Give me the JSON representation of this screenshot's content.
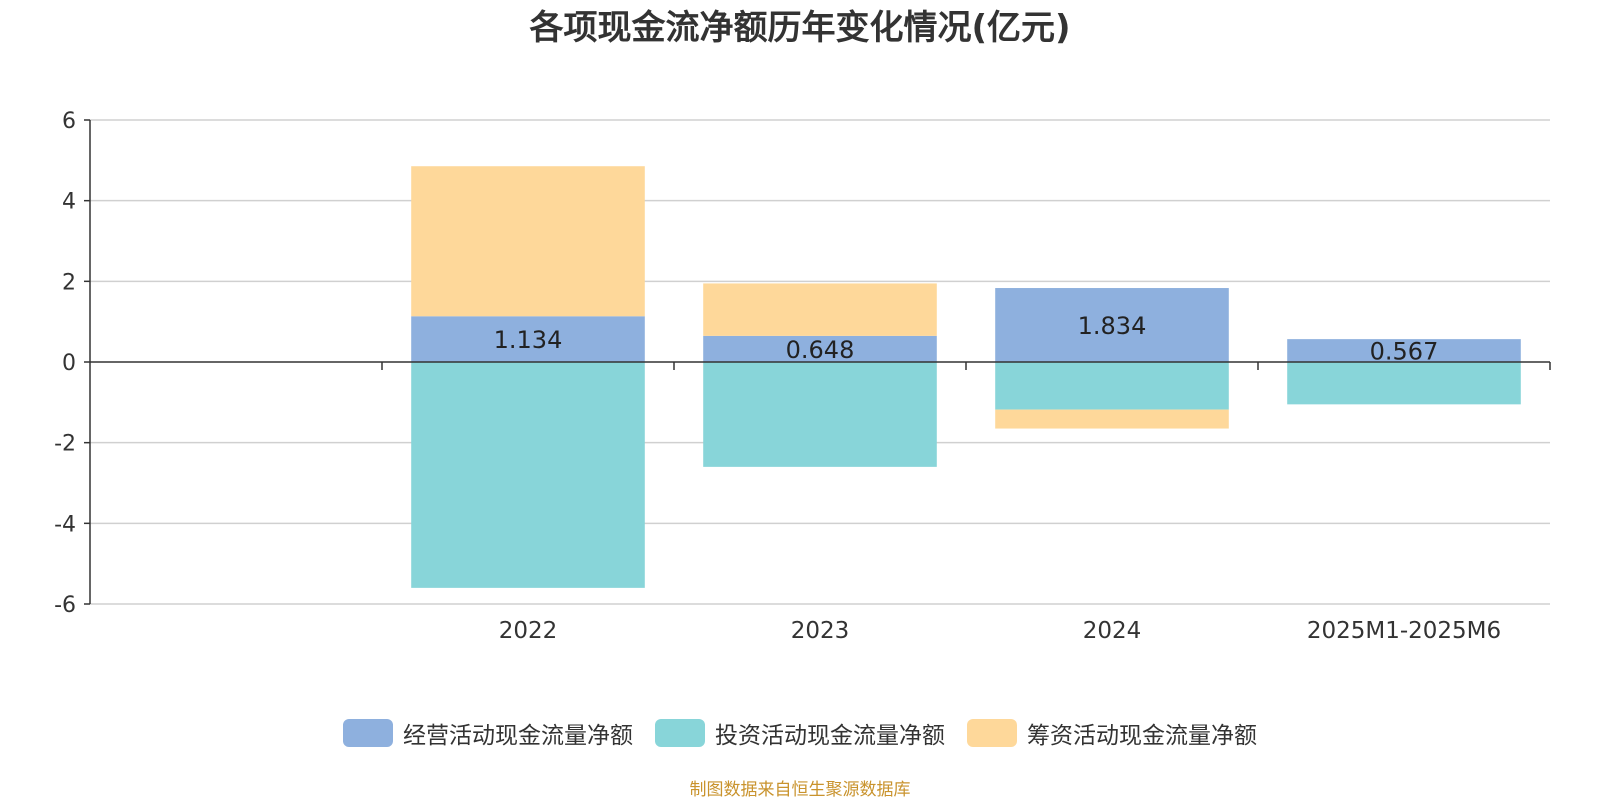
{
  "chart_data": {
    "type": "bar",
    "stacked": true,
    "title": "各项现金流净额历年变化情况(亿元)",
    "categories": [
      "",
      "2022",
      "2023",
      "2024",
      "2025M1-2025M6"
    ],
    "ylim": [
      -6,
      6
    ],
    "yticks": [
      6,
      4,
      2,
      0,
      -2,
      -4,
      -6
    ],
    "grid": true,
    "legend_position": "bottom",
    "series": [
      {
        "name": "经营活动现金流量净额",
        "color": "#8eb0de",
        "values": [
          null,
          1.134,
          0.648,
          1.834,
          0.567
        ],
        "labels": [
          "",
          "1.134",
          "0.648",
          "1.834",
          "0.567"
        ]
      },
      {
        "name": "投资活动现金流量净额",
        "color": "#88d5d9",
        "values": [
          null,
          -5.6,
          -2.6,
          -1.18,
          -1.05
        ]
      },
      {
        "name": "筹资活动现金流量净额",
        "color": "#fed89a",
        "values": [
          null,
          3.72,
          1.3,
          -0.47,
          0
        ]
      }
    ]
  },
  "legend": [
    {
      "label": "经营活动现金流量净额",
      "color": "#8eb0de"
    },
    {
      "label": "投资活动现金流量净额",
      "color": "#88d5d9"
    },
    {
      "label": "筹资活动现金流量净额",
      "color": "#fed89a"
    }
  ],
  "source_note": "制图数据来自恒生聚源数据库"
}
